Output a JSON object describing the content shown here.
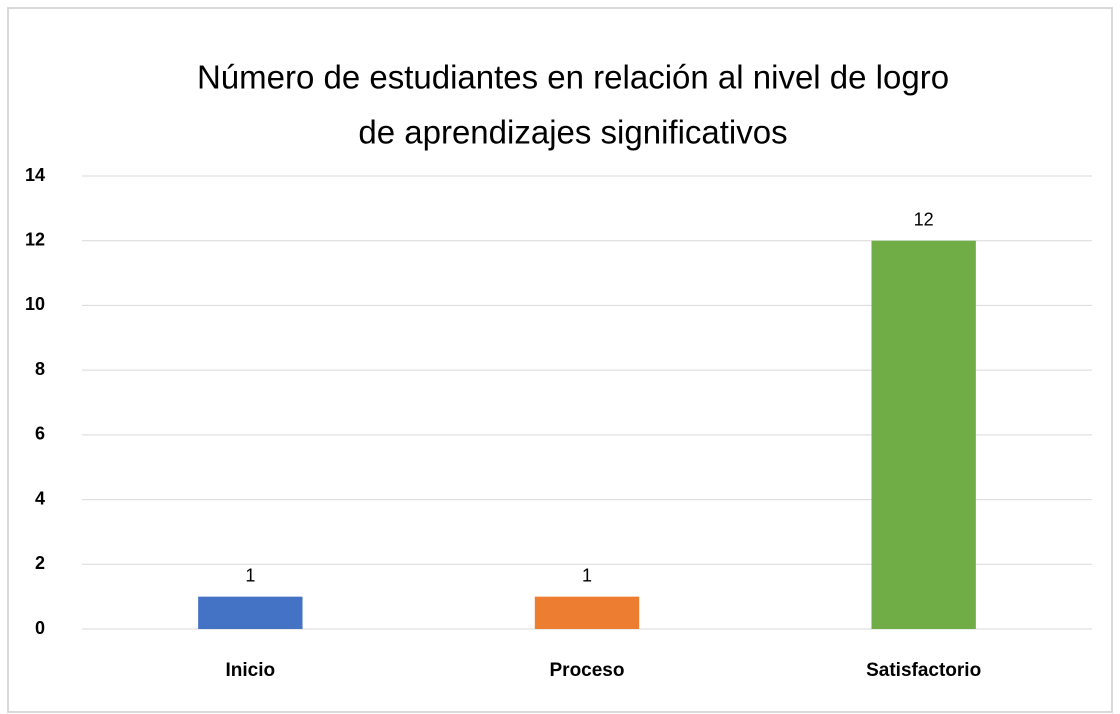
{
  "chart_data": {
    "type": "bar",
    "title": [
      "Número de estudiantes en relación al nivel de logro",
      "de aprendizajes significativos"
    ],
    "categories": [
      "Inicio",
      "Proceso",
      "Satisfactorio"
    ],
    "values": [
      1,
      1,
      12
    ],
    "colors": [
      "#4472c4",
      "#ed7d31",
      "#70ad47"
    ],
    "ylim": [
      0,
      14
    ],
    "yticks": [
      0,
      2,
      4,
      6,
      8,
      10,
      12,
      14
    ],
    "grid": true
  }
}
